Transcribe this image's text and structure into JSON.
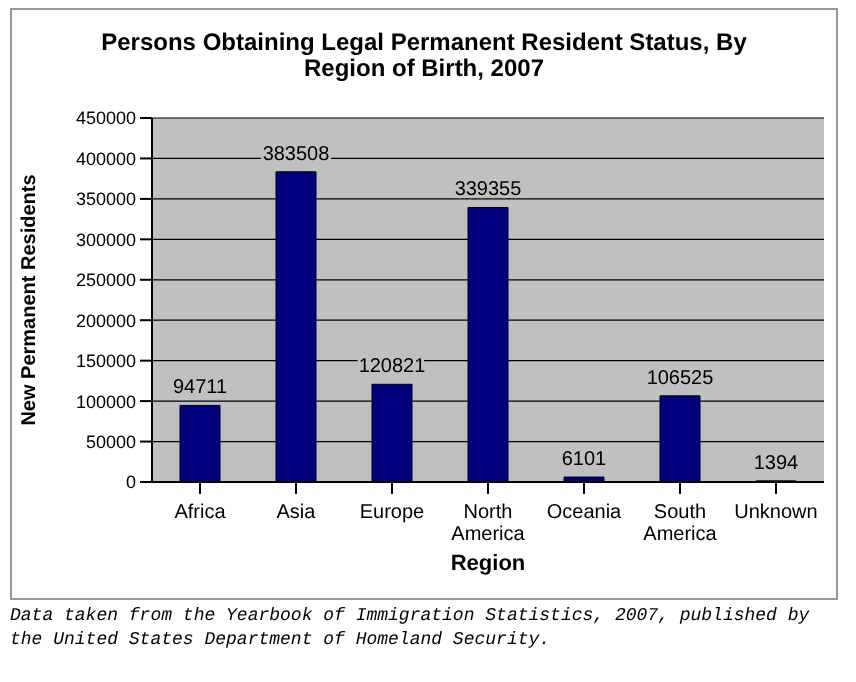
{
  "chart_data": {
    "type": "bar",
    "title": "Persons Obtaining Legal Permanent Resident Status, By Region of Birth, 2007",
    "xlabel": "Region",
    "ylabel": "New Permanent Residents",
    "categories": [
      "Africa",
      "Asia",
      "Europe",
      "North America",
      "Oceania",
      "South America",
      "Unknown"
    ],
    "values": [
      94711,
      383508,
      120821,
      339355,
      6101,
      106525,
      1394
    ],
    "color": "#000080",
    "ylim": [
      0,
      450000
    ],
    "yticks": [
      0,
      50000,
      100000,
      150000,
      200000,
      250000,
      300000,
      350000,
      400000,
      450000
    ],
    "grid": "y",
    "data_labels": true,
    "legend": false,
    "annotations": [
      "Data taken from the Yearbook of Immigration Statistics, 2007, published by the United States Department of Homeland Security."
    ]
  }
}
